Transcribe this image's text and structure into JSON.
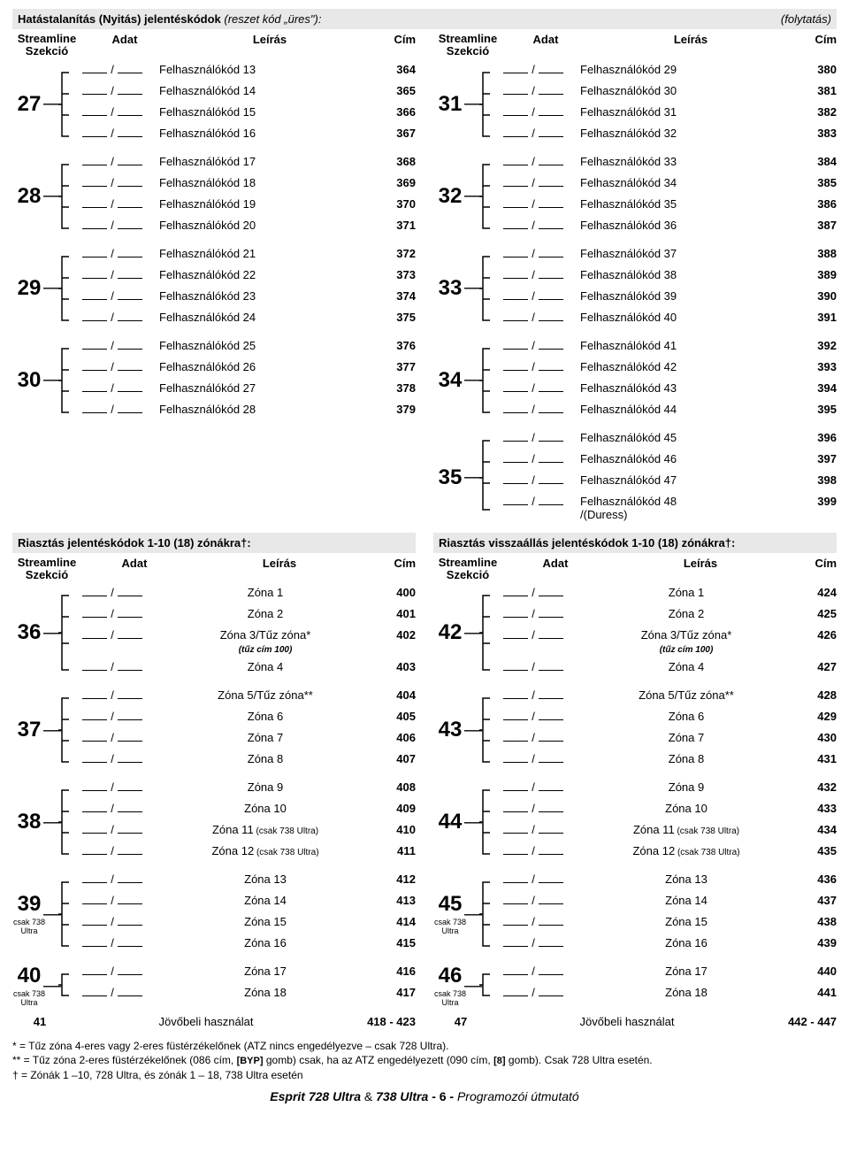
{
  "top": {
    "title_main": "Hatástalanítás (Nyitás) jelentéskódok ",
    "title_ital": "(reszet kód „üres\"):",
    "cont": "(folytatás)",
    "cols": {
      "sec_l1": "Streamline",
      "sec_l2": "Szekció",
      "adat": "Adat",
      "desc": "Leírás",
      "cim": "Cím"
    }
  },
  "left_top": [
    {
      "sec": "27",
      "rows": [
        {
          "desc": "Felhasználókód 13",
          "cim": "364"
        },
        {
          "desc": "Felhasználókód 14",
          "cim": "365"
        },
        {
          "desc": "Felhasználókód 15",
          "cim": "366"
        },
        {
          "desc": "Felhasználókód 16",
          "cim": "367"
        }
      ]
    },
    {
      "sec": "28",
      "rows": [
        {
          "desc": "Felhasználókód 17",
          "cim": "368"
        },
        {
          "desc": "Felhasználókód 18",
          "cim": "369"
        },
        {
          "desc": "Felhasználókód 19",
          "cim": "370"
        },
        {
          "desc": "Felhasználókód 20",
          "cim": "371"
        }
      ]
    },
    {
      "sec": "29",
      "rows": [
        {
          "desc": "Felhasználókód 21",
          "cim": "372"
        },
        {
          "desc": "Felhasználókód 22",
          "cim": "373"
        },
        {
          "desc": "Felhasználókód 23",
          "cim": "374"
        },
        {
          "desc": "Felhasználókód 24",
          "cim": "375"
        }
      ]
    },
    {
      "sec": "30",
      "rows": [
        {
          "desc": "Felhasználókód 25",
          "cim": "376"
        },
        {
          "desc": "Felhasználókód 26",
          "cim": "377"
        },
        {
          "desc": "Felhasználókód 27",
          "cim": "378"
        },
        {
          "desc": "Felhasználókód 28",
          "cim": "379"
        }
      ]
    }
  ],
  "right_top": [
    {
      "sec": "31",
      "rows": [
        {
          "desc": "Felhasználókód 29",
          "cim": "380"
        },
        {
          "desc": "Felhasználókód 30",
          "cim": "381"
        },
        {
          "desc": "Felhasználókód 31",
          "cim": "382"
        },
        {
          "desc": "Felhasználókód 32",
          "cim": "383"
        }
      ]
    },
    {
      "sec": "32",
      "rows": [
        {
          "desc": "Felhasználókód 33",
          "cim": "384"
        },
        {
          "desc": "Felhasználókód 34",
          "cim": "385"
        },
        {
          "desc": "Felhasználókód 35",
          "cim": "386"
        },
        {
          "desc": "Felhasználókód 36",
          "cim": "387"
        }
      ]
    },
    {
      "sec": "33",
      "rows": [
        {
          "desc": "Felhasználókód 37",
          "cim": "388"
        },
        {
          "desc": "Felhasználókód 38",
          "cim": "389"
        },
        {
          "desc": "Felhasználókód 39",
          "cim": "390"
        },
        {
          "desc": "Felhasználókód 40",
          "cim": "391"
        }
      ]
    },
    {
      "sec": "34",
      "rows": [
        {
          "desc": "Felhasználókód 41",
          "cim": "392"
        },
        {
          "desc": "Felhasználókód 42",
          "cim": "393"
        },
        {
          "desc": "Felhasználókód 43",
          "cim": "394"
        },
        {
          "desc": "Felhasználókód 44",
          "cim": "395"
        }
      ]
    },
    {
      "sec": "35",
      "rows": [
        {
          "desc": "Felhasználókód 45",
          "cim": "396"
        },
        {
          "desc": "Felhasználókód 46",
          "cim": "397"
        },
        {
          "desc": "Felhasználókód 47",
          "cim": "398"
        },
        {
          "desc": "Felhasználókód 48",
          "sub": "/(Duress)",
          "cim": "399",
          "tall": true
        }
      ]
    }
  ],
  "mid": {
    "left_title": "Riasztás jelentéskódok 1-10 (18) zónákra†:",
    "right_title": "Riasztás visszaállás jelentéskódok 1-10 (18) zónákra†:"
  },
  "left_mid": [
    {
      "sec": "36",
      "rows": [
        {
          "desc": "Zóna 1",
          "cim": "400"
        },
        {
          "desc": "Zóna 2",
          "cim": "401"
        },
        {
          "desc": "Zóna 3/Tűz zóna*",
          "sub": "(tűz cím 100)",
          "cim": "402",
          "tall": true,
          "center": true
        },
        {
          "desc": "Zóna 4",
          "cim": "403"
        }
      ]
    },
    {
      "sec": "37",
      "rows": [
        {
          "desc": "Zóna 5/Tűz zóna**",
          "cim": "404"
        },
        {
          "desc": "Zóna 6",
          "cim": "405"
        },
        {
          "desc": "Zóna 7",
          "cim": "406"
        },
        {
          "desc": "Zóna 8",
          "cim": "407"
        }
      ]
    },
    {
      "sec": "38",
      "rows": [
        {
          "desc": "Zóna 9",
          "cim": "408"
        },
        {
          "desc": "Zóna 10",
          "cim": "409"
        },
        {
          "desc": "Zóna 11",
          "sub2": " (csak 738 Ultra)",
          "cim": "410",
          "inline": true
        },
        {
          "desc": "Zóna 12",
          "sub2": " (csak 738 Ultra)",
          "cim": "411",
          "inline": true
        }
      ]
    },
    {
      "sec": "39",
      "secnote": "csak 738\nUltra",
      "rows": [
        {
          "desc": "Zóna 13",
          "cim": "412"
        },
        {
          "desc": "Zóna 14",
          "cim": "413"
        },
        {
          "desc": "Zóna 15",
          "cim": "414"
        },
        {
          "desc": "Zóna 16",
          "cim": "415"
        }
      ]
    },
    {
      "sec": "40",
      "secnote": "csak 738 Ultra",
      "rows": [
        {
          "desc": "Zóna 17",
          "cim": "416"
        },
        {
          "desc": "Zóna 18",
          "cim": "417"
        }
      ]
    }
  ],
  "right_mid": [
    {
      "sec": "42",
      "rows": [
        {
          "desc": "Zóna 1",
          "cim": "424"
        },
        {
          "desc": "Zóna 2",
          "cim": "425"
        },
        {
          "desc": "Zóna 3/Tűz zóna*",
          "sub": "(tűz cím 100)",
          "cim": "426",
          "tall": true,
          "center": true
        },
        {
          "desc": "Zóna 4",
          "cim": "427"
        }
      ]
    },
    {
      "sec": "43",
      "rows": [
        {
          "desc": "Zóna 5/Tűz zóna**",
          "cim": "428"
        },
        {
          "desc": "Zóna 6",
          "cim": "429"
        },
        {
          "desc": "Zóna 7",
          "cim": "430"
        },
        {
          "desc": "Zóna 8",
          "cim": "431"
        }
      ]
    },
    {
      "sec": "44",
      "rows": [
        {
          "desc": "Zóna 9",
          "cim": "432"
        },
        {
          "desc": "Zóna 10",
          "cim": "433"
        },
        {
          "desc": "Zóna 11",
          "sub2": " (csak 738 Ultra)",
          "cim": "434",
          "inline": true
        },
        {
          "desc": "Zóna 12",
          "sub2": " (csak 738 Ultra)",
          "cim": "435",
          "inline": true
        }
      ]
    },
    {
      "sec": "45",
      "secnote": "csak 738\nUltra",
      "rows": [
        {
          "desc": "Zóna 13",
          "cim": "436"
        },
        {
          "desc": "Zóna 14",
          "cim": "437"
        },
        {
          "desc": "Zóna 15",
          "cim": "438"
        },
        {
          "desc": "Zóna 16",
          "cim": "439"
        }
      ]
    },
    {
      "sec": "46",
      "secnote": "csak 738 Ultra",
      "rows": [
        {
          "desc": "Zóna 17",
          "cim": "440"
        },
        {
          "desc": "Zóna 18",
          "cim": "441"
        }
      ]
    }
  ],
  "future": {
    "left": {
      "sec": "41",
      "desc": "Jövőbeli használat",
      "cim": "418 - 423"
    },
    "right": {
      "sec": "47",
      "desc": "Jövőbeli használat",
      "cim": "442 - 447"
    }
  },
  "footnotes": {
    "l1": "*  = Tűz zóna 4-eres vagy 2-eres füstérzékelőnek (ATZ nincs engedélyezve – csak 728 Ultra).",
    "l2a": "** = Tűz zóna 2-eres füstérzékelőnek (086 cím, ",
    "l2b": "[BYP]",
    "l2c": " gomb) csak, ha az ATZ engedélyezett (090 cím, ",
    "l2d": "[8]",
    "l2e": " gomb). Csak 728 Ultra esetén.",
    "l3": "†  = Zónák 1 –10, 728 Ultra, és zónák 1 – 18, 738 Ultra esetén"
  },
  "foot": {
    "a": "Esprit 728 Ultra ",
    "b": "& ",
    "c": "738 Ultra  ",
    "d": "- 6 -  ",
    "e": "Programozói útmutató"
  }
}
